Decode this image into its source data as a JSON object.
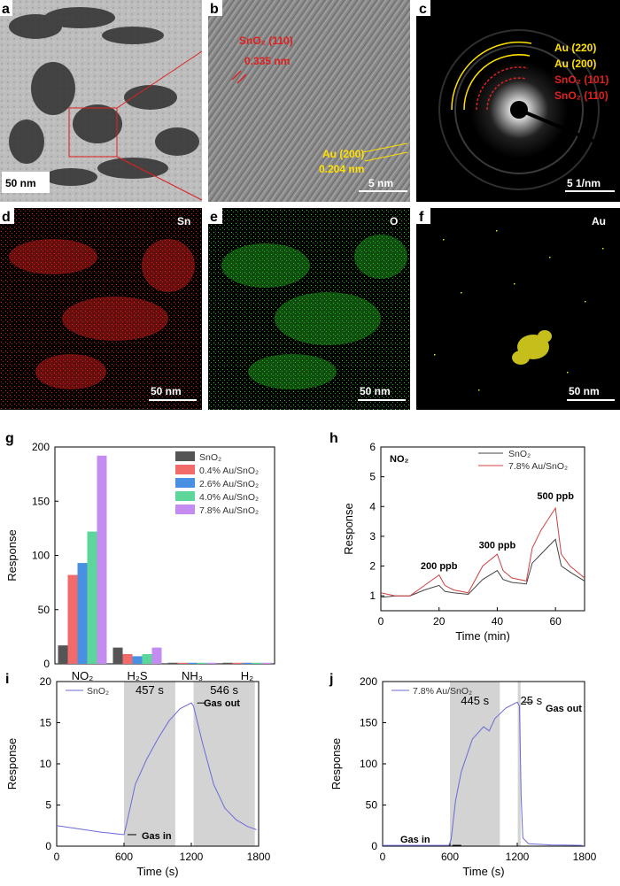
{
  "panels": {
    "a": {
      "label": "a",
      "scale_bar": "50 nm"
    },
    "b": {
      "label": "b",
      "scale_bar": "5 nm",
      "sno2_label": "SnO₂ (110)",
      "sno2_spacing": "0.335 nm",
      "au_label": "Au (200)",
      "au_spacing": "0.204 nm"
    },
    "c": {
      "label": "c",
      "scale_bar": "5 1/nm",
      "rings": [
        "Au (220)",
        "Au (200)",
        "SnO₂ (101)",
        "SnO₂ (110)"
      ]
    },
    "d": {
      "label": "d",
      "element": "Sn",
      "scale_bar": "50 nm"
    },
    "e": {
      "label": "e",
      "element": "O",
      "scale_bar": "50 nm"
    },
    "f": {
      "label": "f",
      "element": "Au",
      "scale_bar": "50 nm"
    },
    "g": {
      "label": "g"
    },
    "h": {
      "label": "h"
    },
    "i": {
      "label": "i"
    },
    "j": {
      "label": "j"
    }
  },
  "colors": {
    "sn_map": "#e02020",
    "o_map": "#28c428",
    "au_map": "#e8e020",
    "sno2": "#555555",
    "c04": "#f26b6b",
    "c26": "#4a90e2",
    "c40": "#5cd69a",
    "c78": "#c48cf0",
    "line_sno2": "#444444",
    "line_au": "#d04040",
    "blue_line": "#6a6ad8"
  },
  "chart_data": [
    {
      "id": "g",
      "type": "bar",
      "title": "",
      "xlabel": "",
      "ylabel": "Response",
      "ylim": [
        0,
        200
      ],
      "yticks": [
        0,
        50,
        100,
        150,
        200
      ],
      "categories": [
        "NO₂",
        "H₂S",
        "NH₃",
        "H₂"
      ],
      "series": [
        {
          "name": "SnO₂",
          "values": [
            17,
            15,
            1,
            1
          ]
        },
        {
          "name": "0.4% Au/SnO₂",
          "values": [
            82,
            9,
            1,
            1
          ]
        },
        {
          "name": "2.6% Au/SnO₂",
          "values": [
            93,
            7,
            1,
            1
          ]
        },
        {
          "name": "4.0% Au/SnO₂",
          "values": [
            122,
            9,
            1,
            1
          ]
        },
        {
          "name": "7.8% Au/SnO₂",
          "values": [
            192,
            15,
            1,
            1
          ]
        }
      ],
      "legend": "top-right"
    },
    {
      "id": "h",
      "type": "line",
      "gas_label": "NO₂",
      "xlabel": "Time (min)",
      "ylabel": "Response",
      "xlim": [
        0,
        70
      ],
      "ylim": [
        0.5,
        6
      ],
      "xticks": [
        0,
        20,
        40,
        60
      ],
      "yticks": [
        1,
        2,
        3,
        4,
        5,
        6
      ],
      "series": [
        {
          "name": "SnO₂",
          "x": [
            0,
            5,
            10,
            15,
            20,
            22,
            25,
            30,
            35,
            40,
            42,
            45,
            50,
            52,
            55,
            60,
            62,
            65,
            70
          ],
          "y": [
            0.95,
            1.0,
            1.0,
            1.2,
            1.35,
            1.15,
            1.1,
            1.05,
            1.55,
            1.85,
            1.55,
            1.45,
            1.4,
            2.1,
            2.4,
            2.9,
            2.0,
            1.8,
            1.5
          ]
        },
        {
          "name": "7.8% Au/SnO₂",
          "x": [
            0,
            5,
            10,
            15,
            20,
            22,
            25,
            30,
            35,
            40,
            42,
            45,
            50,
            52,
            55,
            60,
            62,
            65,
            70
          ],
          "y": [
            1.1,
            1.0,
            1.0,
            1.35,
            1.7,
            1.35,
            1.2,
            1.1,
            2.0,
            2.4,
            1.85,
            1.6,
            1.5,
            2.6,
            3.2,
            3.95,
            2.4,
            2.0,
            1.6
          ]
        }
      ],
      "annotations": [
        "200 ppb",
        "300 ppb",
        "500 ppb"
      ],
      "legend": "top-right"
    },
    {
      "id": "i",
      "type": "line",
      "xlabel": "Time (s)",
      "ylabel": "Response",
      "xlim": [
        0,
        1800
      ],
      "ylim": [
        0,
        20
      ],
      "xticks": [
        0,
        600,
        1200,
        1800
      ],
      "yticks": [
        0,
        5,
        10,
        15,
        20
      ],
      "series": [
        {
          "name": "SnO₂",
          "x": [
            0,
            200,
            400,
            600,
            620,
            700,
            800,
            900,
            1000,
            1100,
            1200,
            1220,
            1300,
            1400,
            1500,
            1600,
            1700,
            1780
          ],
          "y": [
            2.5,
            2.1,
            1.7,
            1.4,
            2.5,
            7.5,
            10.5,
            13.0,
            15.2,
            16.7,
            17.4,
            17.0,
            12.5,
            7.5,
            4.6,
            3.2,
            2.4,
            2.0
          ]
        }
      ],
      "shaded_regions": [
        [
          600,
          1057
        ],
        [
          1220,
          1766
        ]
      ],
      "region_labels": [
        "457 s",
        "546 s"
      ],
      "annotations": [
        "Gas in",
        "Gas out"
      ],
      "legend": "top-left"
    },
    {
      "id": "j",
      "type": "line",
      "xlabel": "Time (s)",
      "ylabel": "Response",
      "xlim": [
        0,
        1800
      ],
      "ylim": [
        0,
        200
      ],
      "xticks": [
        0,
        600,
        1200,
        1800
      ],
      "yticks": [
        0,
        50,
        100,
        150,
        200
      ],
      "series": [
        {
          "name": "7.8% Au/SnO₂",
          "x": [
            0,
            300,
            590,
            610,
            650,
            700,
            800,
            900,
            950,
            1000,
            1100,
            1200,
            1220,
            1235,
            1250,
            1300,
            1500,
            1780
          ],
          "y": [
            1,
            1,
            1,
            8,
            55,
            90,
            130,
            145,
            140,
            155,
            168,
            175,
            170,
            60,
            10,
            3,
            1.5,
            1
          ]
        }
      ],
      "shaded_regions": [
        [
          600,
          1045
        ],
        [
          1205,
          1230
        ]
      ],
      "region_labels": [
        "445 s",
        "25 s"
      ],
      "annotations": [
        "Gas in",
        "Gas out"
      ],
      "legend": "top-left"
    }
  ]
}
